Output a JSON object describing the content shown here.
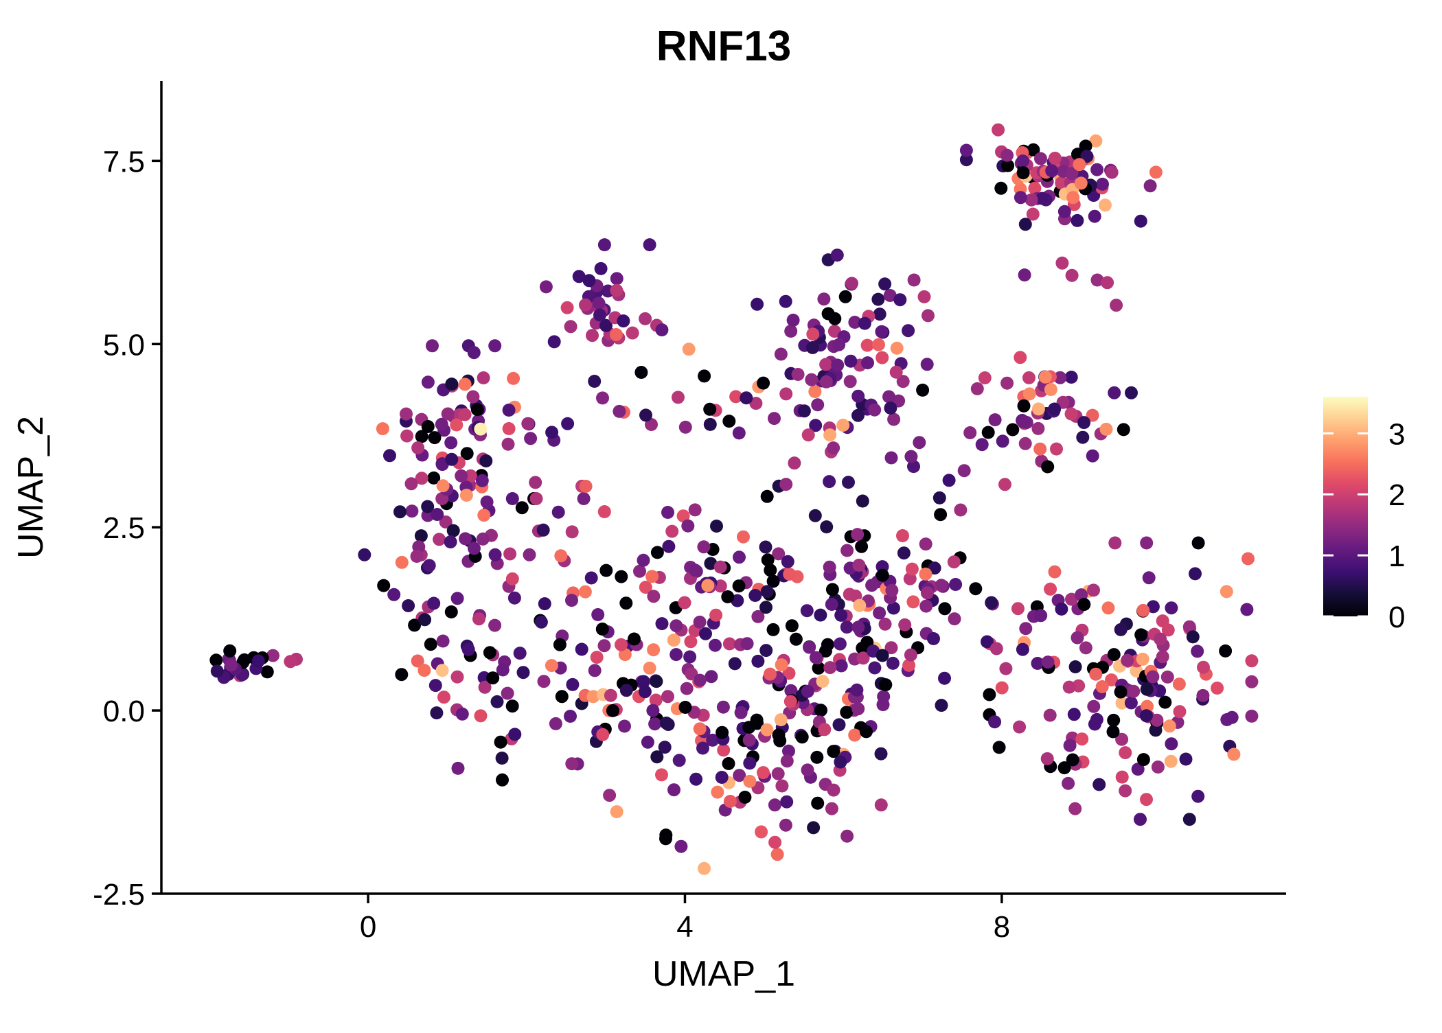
{
  "chart_data": {
    "type": "scatter",
    "title": "RNF13",
    "xlabel": "UMAP_1",
    "ylabel": "UMAP_2",
    "xlim": [
      -2.61,
      11.59
    ],
    "ylim": [
      -2.5,
      8.59
    ],
    "x_ticks": [
      0,
      4,
      8
    ],
    "x_tick_labels": [
      "0",
      "4",
      "8"
    ],
    "y_ticks": [
      7.5,
      5.0,
      2.5,
      0.0,
      -2.5
    ],
    "y_tick_labels": [
      "7.5",
      "5.0",
      "2.5",
      "0.0",
      "-2.5"
    ],
    "grid": false,
    "legend": {
      "position": "right",
      "ticks": [
        0,
        1,
        2,
        3
      ],
      "tick_labels": [
        "0",
        "1",
        "2",
        "3"
      ],
      "vmin": 0,
      "vmax": 3.6,
      "colormap": "magma",
      "stops": [
        "#000004",
        "#140e36",
        "#3b0f70",
        "#641a80",
        "#8c2981",
        "#b73779",
        "#de4968",
        "#f7705c",
        "#fe9f6d",
        "#fecf92",
        "#fcfdbf"
      ]
    },
    "point_radius_px": 9.5,
    "generation": {
      "seed": 1337
    },
    "clusters": [
      {
        "name": "far-left-islet",
        "cx": -1.55,
        "cy": 0.62,
        "sx": 0.2,
        "sy": 0.12,
        "n": 20,
        "values": [
          [
            0,
            0.05,
            0.28
          ],
          [
            0.5,
            1.2,
            0.42
          ],
          [
            1.2,
            1.9,
            0.3
          ]
        ]
      },
      {
        "name": "far-left-strays",
        "cx": -1.05,
        "cy": 0.75,
        "sx": 0.18,
        "sy": 0.05,
        "n": 3,
        "values": [
          [
            1.2,
            1.9,
            1
          ]
        ]
      },
      {
        "name": "upper-left",
        "cx": 1.15,
        "cy": 3.55,
        "sx": 0.52,
        "sy": 0.62,
        "n": 95,
        "values": [
          [
            0,
            0.05,
            0.2
          ],
          [
            0.4,
            1.1,
            0.3
          ],
          [
            1.1,
            1.7,
            0.28
          ],
          [
            1.7,
            2.3,
            0.15
          ],
          [
            2.3,
            2.8,
            0.06
          ],
          [
            2.8,
            3.1,
            0.01
          ]
        ]
      },
      {
        "name": "left-mid",
        "cx": 1.35,
        "cy": 1.05,
        "sx": 0.62,
        "sy": 0.8,
        "n": 70,
        "values": [
          [
            0,
            0.05,
            0.17
          ],
          [
            0.4,
            1.1,
            0.3
          ],
          [
            1.1,
            1.7,
            0.28
          ],
          [
            1.7,
            2.3,
            0.16
          ],
          [
            2.3,
            2.8,
            0.07
          ],
          [
            2.8,
            3.2,
            0.02
          ]
        ]
      },
      {
        "name": "top-middle",
        "cx": 2.95,
        "cy": 5.55,
        "sx": 0.33,
        "sy": 0.35,
        "n": 36,
        "values": [
          [
            0,
            0.05,
            0.1
          ],
          [
            0.5,
            1.2,
            0.45
          ],
          [
            1.2,
            1.8,
            0.33
          ],
          [
            1.8,
            2.4,
            0.12
          ]
        ]
      },
      {
        "name": "mid-band",
        "cx": 3.95,
        "cy": 4.2,
        "sx": 0.75,
        "sy": 0.18,
        "n": 24,
        "values": [
          [
            0,
            0.05,
            0.12
          ],
          [
            0.5,
            1.2,
            0.3
          ],
          [
            1.2,
            1.9,
            0.3
          ],
          [
            1.9,
            2.5,
            0.22
          ],
          [
            2.5,
            3.0,
            0.06
          ]
        ]
      },
      {
        "name": "central",
        "cx": 6.05,
        "cy": 4.65,
        "sx": 0.52,
        "sy": 0.68,
        "n": 92,
        "values": [
          [
            0,
            0.05,
            0.09
          ],
          [
            0.5,
            1.2,
            0.46
          ],
          [
            1.2,
            1.8,
            0.29
          ],
          [
            1.8,
            2.4,
            0.11
          ],
          [
            2.4,
            3.0,
            0.05
          ]
        ]
      },
      {
        "name": "bottom-mass-w",
        "cx": 3.3,
        "cy": 0.55,
        "sx": 0.75,
        "sy": 0.85,
        "n": 90,
        "values": [
          [
            0,
            0.05,
            0.17
          ],
          [
            0.4,
            1.1,
            0.3
          ],
          [
            1.1,
            1.7,
            0.28
          ],
          [
            1.7,
            2.3,
            0.16
          ],
          [
            2.3,
            2.8,
            0.07
          ],
          [
            2.8,
            3.2,
            0.02
          ]
        ]
      },
      {
        "name": "bottom-mass-s",
        "cx": 4.85,
        "cy": -0.5,
        "sx": 0.8,
        "sy": 0.72,
        "n": 90,
        "values": [
          [
            0,
            0.05,
            0.17
          ],
          [
            0.4,
            1.1,
            0.3
          ],
          [
            1.1,
            1.7,
            0.28
          ],
          [
            1.7,
            2.3,
            0.16
          ],
          [
            2.3,
            2.8,
            0.07
          ],
          [
            2.8,
            3.2,
            0.02
          ]
        ]
      },
      {
        "name": "bottom-mass-e",
        "cx": 5.8,
        "cy": 0.55,
        "sx": 0.7,
        "sy": 0.8,
        "n": 80,
        "values": [
          [
            0,
            0.05,
            0.17
          ],
          [
            0.4,
            1.1,
            0.3
          ],
          [
            1.1,
            1.7,
            0.28
          ],
          [
            1.7,
            2.3,
            0.16
          ],
          [
            2.3,
            2.8,
            0.07
          ],
          [
            2.8,
            3.2,
            0.02
          ]
        ]
      },
      {
        "name": "bottom-mass-ne",
        "cx": 6.55,
        "cy": 1.45,
        "sx": 0.55,
        "sy": 0.6,
        "n": 55,
        "values": [
          [
            0,
            0.05,
            0.15
          ],
          [
            0.4,
            1.1,
            0.3
          ],
          [
            1.1,
            1.7,
            0.28
          ],
          [
            1.7,
            2.3,
            0.17
          ],
          [
            2.3,
            2.8,
            0.08
          ],
          [
            2.8,
            3.2,
            0.02
          ]
        ]
      },
      {
        "name": "bottom-mass-n",
        "cx": 4.3,
        "cy": 1.7,
        "sx": 0.85,
        "sy": 0.45,
        "n": 45,
        "values": [
          [
            0,
            0.05,
            0.17
          ],
          [
            0.4,
            1.1,
            0.3
          ],
          [
            1.1,
            1.7,
            0.28
          ],
          [
            1.7,
            2.3,
            0.16
          ],
          [
            2.3,
            2.8,
            0.07
          ],
          [
            2.8,
            3.2,
            0.02
          ]
        ]
      },
      {
        "name": "right-middle",
        "cx": 8.6,
        "cy": 4.2,
        "sx": 0.45,
        "sy": 0.38,
        "n": 46,
        "values": [
          [
            0,
            0.05,
            0.12
          ],
          [
            0.5,
            1.2,
            0.3
          ],
          [
            1.2,
            1.8,
            0.22
          ],
          [
            1.8,
            2.4,
            0.15
          ],
          [
            2.4,
            2.9,
            0.11
          ],
          [
            2.9,
            3.3,
            0.1
          ]
        ]
      },
      {
        "name": "top-right",
        "cx": 8.75,
        "cy": 7.3,
        "sx": 0.52,
        "sy": 0.3,
        "n": 80,
        "values": [
          [
            0,
            0.05,
            0.14
          ],
          [
            0.5,
            1.2,
            0.34
          ],
          [
            1.2,
            1.8,
            0.24
          ],
          [
            1.8,
            2.4,
            0.14
          ],
          [
            2.4,
            2.9,
            0.1
          ],
          [
            2.9,
            3.2,
            0.04
          ]
        ]
      },
      {
        "name": "top-right-strays",
        "cx": 8.95,
        "cy": 5.7,
        "sx": 0.35,
        "sy": 0.5,
        "n": 7,
        "values": [
          [
            0.5,
            1.2,
            0.6
          ],
          [
            1.2,
            1.9,
            0.4
          ]
        ]
      },
      {
        "name": "right-lower",
        "cx": 9.5,
        "cy": 0.4,
        "sx": 0.72,
        "sy": 0.82,
        "n": 155,
        "values": [
          [
            0,
            0.05,
            0.15
          ],
          [
            0.4,
            1.1,
            0.31
          ],
          [
            1.1,
            1.7,
            0.29
          ],
          [
            1.7,
            2.3,
            0.16
          ],
          [
            2.3,
            2.8,
            0.07
          ],
          [
            2.8,
            3.2,
            0.02
          ]
        ]
      },
      {
        "name": "mid-sparse",
        "cx": 4.6,
        "cy": 2.55,
        "sx": 1.5,
        "sy": 0.45,
        "n": 22,
        "values": [
          [
            0,
            0.05,
            0.15
          ],
          [
            0.4,
            1.1,
            0.3
          ],
          [
            1.1,
            1.7,
            0.28
          ],
          [
            1.7,
            2.3,
            0.18
          ],
          [
            2.3,
            2.8,
            0.09
          ]
        ]
      },
      {
        "name": "bridge-right",
        "cx": 7.35,
        "cy": 3.1,
        "sx": 0.3,
        "sy": 0.6,
        "n": 8,
        "values": [
          [
            0.5,
            1.3,
            0.7
          ],
          [
            1.3,
            2.0,
            0.3
          ]
        ]
      },
      {
        "name": "bridge-low",
        "cx": 7.4,
        "cy": 1.9,
        "sx": 0.3,
        "sy": 0.4,
        "n": 6,
        "values": [
          [
            0,
            0.05,
            0.2
          ],
          [
            0.5,
            1.3,
            0.5
          ],
          [
            1.3,
            2.0,
            0.3
          ]
        ]
      }
    ],
    "highlights": [
      {
        "x": 1.42,
        "y": 3.84,
        "value": 3.5
      },
      {
        "x": 4.05,
        "y": 4.93,
        "value": 2.85
      },
      {
        "x": 5.83,
        "y": 3.76,
        "value": 2.95
      },
      {
        "x": 3.86,
        "y": 0.96,
        "value": 2.9
      },
      {
        "x": 9.78,
        "y": 0.7,
        "value": 2.9
      },
      {
        "x": 8.55,
        "y": 4.55,
        "value": 2.7
      },
      {
        "x": 8.62,
        "y": 4.38,
        "value": 2.75
      },
      {
        "x": 8.35,
        "y": 4.32,
        "value": 2.7
      },
      {
        "x": 8.98,
        "y": 7.45,
        "value": 2.5
      },
      {
        "x": 8.9,
        "y": 7.0,
        "value": 2.6
      }
    ]
  }
}
